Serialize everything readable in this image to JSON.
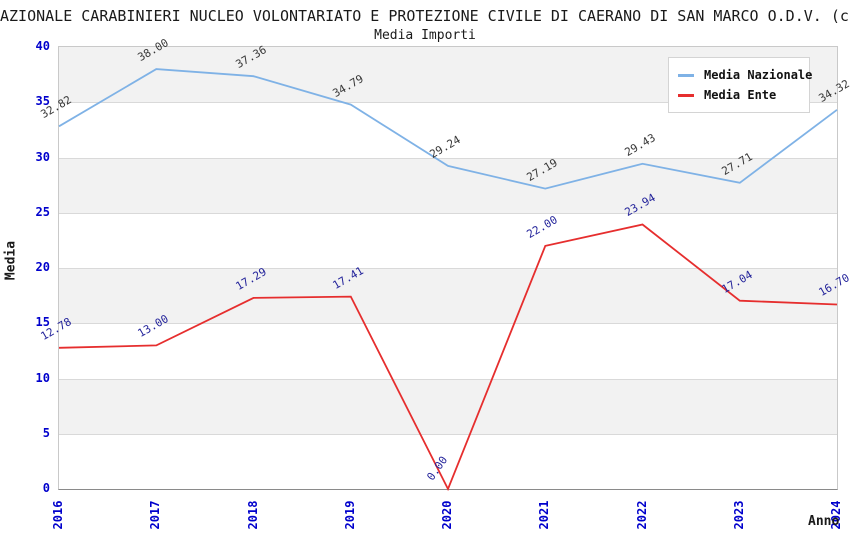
{
  "title": "AZIONALE CARABINIERI NUCLEO VOLONTARIATO E PROTEZIONE CIVILE DI CAERANO DI SAN MARCO O.D.V. (c.",
  "subtitle": "Media Importi",
  "axis": {
    "ylabel": "Media",
    "xlabel": "Anno",
    "tick_color": "#0000cc",
    "yticks": [
      0,
      5,
      10,
      15,
      20,
      25,
      30,
      35,
      40
    ]
  },
  "legend": {
    "position": "upper right",
    "items": [
      {
        "label": "Media Nazionale",
        "color": "#7fb2e6"
      },
      {
        "label": "Media Ente",
        "color": "#e62e2e"
      }
    ]
  },
  "style_colors": {
    "band_gray": "#f2f2f2",
    "gridline": "#d9d9d9",
    "blue_line": "#7fb2e6",
    "red_line": "#e62e2e",
    "blue_label_text": "#383838",
    "red_label_text": "#24249b"
  },
  "chart_data": {
    "type": "line",
    "title": "Media Importi",
    "xlabel": "Anno",
    "ylabel": "Media",
    "x": [
      2016,
      2017,
      2018,
      2019,
      2020,
      2021,
      2022,
      2023,
      2024
    ],
    "ylim": [
      0,
      40
    ],
    "ytick_step": 5,
    "grid": "horizontal gridlines with alternating gray bands every 5 units",
    "legend_position": "upper right",
    "series": [
      {
        "name": "Media Nazionale",
        "color": "#7fb2e6",
        "label_color": "#383838",
        "values": [
          32.82,
          38.0,
          37.36,
          34.79,
          29.24,
          27.19,
          29.43,
          27.71,
          34.32
        ]
      },
      {
        "name": "Media Ente",
        "color": "#e62e2e",
        "label_color": "#24249b",
        "values": [
          12.78,
          13.0,
          17.29,
          17.41,
          0.0,
          22.0,
          23.94,
          17.04,
          16.7
        ]
      }
    ]
  }
}
